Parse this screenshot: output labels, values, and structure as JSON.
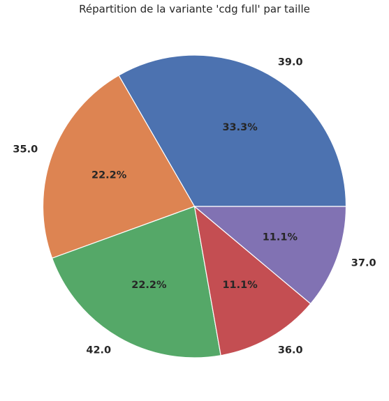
{
  "chart_data": {
    "type": "pie",
    "title": "Répartition de la variante 'cdg full' par taille",
    "categories": [
      "39.0",
      "35.0",
      "42.0",
      "36.0",
      "37.0"
    ],
    "values": [
      33.3,
      22.2,
      22.2,
      11.1,
      11.1
    ],
    "percent_labels": [
      "33.3%",
      "22.2%",
      "22.2%",
      "11.1%",
      "11.1%"
    ],
    "colors": [
      "#4c72b0",
      "#dd8452",
      "#55a868",
      "#c44e52",
      "#8172b3"
    ],
    "start_angle_deg": 0,
    "direction": "counterclockwise"
  }
}
